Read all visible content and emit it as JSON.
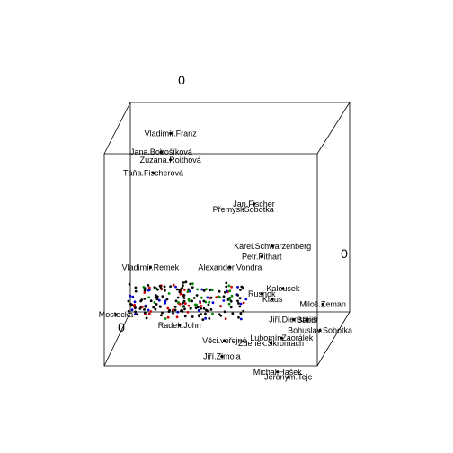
{
  "chart_data": {
    "type": "scatter",
    "projection": "3d",
    "axis_ticks": [
      "0",
      "0",
      "0"
    ],
    "points": [
      {
        "label": "Vladimír.Franz",
        "x": -0.6,
        "y": 0.35,
        "z": 0.8
      },
      {
        "label": "Jana.Bobošíková",
        "x": -0.7,
        "y": 0.4,
        "z": 0.6
      },
      {
        "label": "Zuzana.Roithová",
        "x": -0.6,
        "y": 0.35,
        "z": 0.55
      },
      {
        "label": "Táňa.Fischerová",
        "x": -0.75,
        "y": 0.3,
        "z": 0.45
      },
      {
        "label": "Jan.Fischer",
        "x": 0.25,
        "y": 0.1,
        "z": 0.25
      },
      {
        "label": "Přemysl.Sobotka",
        "x": 0.15,
        "y": 0.1,
        "z": 0.2
      },
      {
        "label": "Karel.Schwarzenberg",
        "x": 0.45,
        "y": 0.0,
        "z": -0.1
      },
      {
        "label": "Petr.Pithart",
        "x": 0.35,
        "y": 0.0,
        "z": -0.2
      },
      {
        "label": "Alexander.Vondra",
        "x": 0.05,
        "y": 0.0,
        "z": -0.3
      },
      {
        "label": "Miloš.Zeman",
        "x": 0.95,
        "y": -0.1,
        "z": -0.6
      },
      {
        "label": "Vladimír.Remek",
        "x": -0.7,
        "y": 0.0,
        "z": -0.3
      },
      {
        "label": "Jiří.Dienstbier",
        "x": 0.7,
        "y": -0.2,
        "z": -0.7
      },
      {
        "label": "Bohuslav.Sobotka",
        "x": 0.95,
        "y": -0.2,
        "z": -0.8
      },
      {
        "label": "Lubomír.Zaorálek",
        "x": 0.6,
        "y": -0.25,
        "z": -0.85
      },
      {
        "label": "Zdeněk.Škromach",
        "x": 0.5,
        "y": -0.25,
        "z": -0.9
      },
      {
        "label": "Věci.veřejné",
        "x": 0.05,
        "y": -0.2,
        "z": -0.9
      },
      {
        "label": "Jiří.Zimola",
        "x": 0.05,
        "y": -0.3,
        "z": -1.0
      },
      {
        "label": "Michal.Hašek",
        "x": 0.6,
        "y": -0.4,
        "z": -1.1
      },
      {
        "label": "Jeroným.Tejc",
        "x": 0.7,
        "y": -0.4,
        "z": -1.15
      },
      {
        "label": "Radek.John",
        "x": -0.4,
        "y": -0.1,
        "z": -0.8
      },
      {
        "label": "Mostecká",
        "x": -1.0,
        "y": -0.1,
        "z": -0.7
      },
      {
        "label": "Kalousek",
        "x": 0.55,
        "y": 0.0,
        "z": -0.5
      },
      {
        "label": "Klaus",
        "x": 0.45,
        "y": 0.0,
        "z": -0.6
      },
      {
        "label": "Babiš",
        "x": 0.8,
        "y": -0.1,
        "z": -0.75
      },
      {
        "label": "Rusnok",
        "x": 0.35,
        "y": 0.0,
        "z": -0.55
      }
    ]
  }
}
